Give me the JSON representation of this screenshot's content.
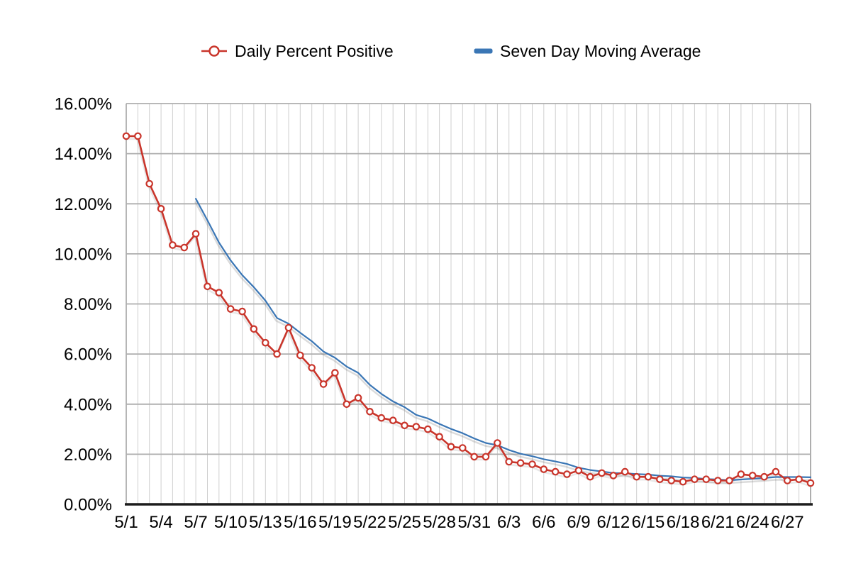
{
  "page": {
    "background": "#ffffff"
  },
  "legend": {
    "items": [
      {
        "label": "Daily Percent Positive",
        "marker": "open-circle",
        "color": "#c9352b"
      },
      {
        "label": "Seven Day Moving Average",
        "marker": "dash",
        "color": "#3a76b5"
      }
    ]
  },
  "colors": {
    "daily_line": "#c9352b",
    "moving_average_line": "#3a76b5",
    "vertical_grid": "#cfcfcf",
    "horizontal_grid": "#aeaeae",
    "axis_line": "#1c1c1c",
    "shadow": "rgba(110,110,110,0.25)"
  },
  "chart_data": {
    "type": "line",
    "title": "",
    "xlabel": "",
    "ylabel": "",
    "ylim": [
      0,
      16
    ],
    "y_tick_step": 2,
    "y_ticks": [
      "0.00%",
      "2.00%",
      "4.00%",
      "6.00%",
      "8.00%",
      "10.00%",
      "12.00%",
      "14.00%",
      "16.00%"
    ],
    "x_tick_every": 3,
    "x_tick_labels": [
      "5/1",
      "5/4",
      "5/7",
      "5/10",
      "5/13",
      "5/16",
      "5/19",
      "5/22",
      "5/25",
      "5/28",
      "5/31",
      "6/3",
      "6/6",
      "6/9",
      "6/12",
      "6/15",
      "6/18",
      "6/21",
      "6/24",
      "6/27"
    ],
    "grid": "both",
    "legend_position": "top",
    "x": [
      "5/1",
      "5/2",
      "5/3",
      "5/4",
      "5/5",
      "5/6",
      "5/7",
      "5/8",
      "5/9",
      "5/10",
      "5/11",
      "5/12",
      "5/13",
      "5/14",
      "5/15",
      "5/16",
      "5/17",
      "5/18",
      "5/19",
      "5/20",
      "5/21",
      "5/22",
      "5/23",
      "5/24",
      "5/25",
      "5/26",
      "5/27",
      "5/28",
      "5/29",
      "5/30",
      "5/31",
      "6/1",
      "6/2",
      "6/3",
      "6/4",
      "6/5",
      "6/6",
      "6/7",
      "6/8",
      "6/9",
      "6/10",
      "6/11",
      "6/12",
      "6/13",
      "6/14",
      "6/15",
      "6/16",
      "6/17",
      "6/18",
      "6/19",
      "6/20",
      "6/21",
      "6/22",
      "6/23",
      "6/24",
      "6/25",
      "6/26",
      "6/27",
      "6/28",
      "6/29"
    ],
    "series": [
      {
        "name": "Daily Percent Positive",
        "color": "#c9352b",
        "marker": "open-circle",
        "values": [
          14.7,
          14.7,
          12.8,
          11.8,
          10.35,
          10.25,
          10.8,
          8.7,
          8.45,
          7.8,
          7.7,
          7.0,
          6.45,
          6.0,
          7.05,
          5.95,
          5.45,
          4.8,
          5.25,
          4.0,
          4.25,
          3.7,
          3.45,
          3.35,
          3.15,
          3.1,
          3.0,
          2.7,
          2.3,
          2.25,
          1.9,
          1.9,
          2.45,
          1.7,
          1.65,
          1.6,
          1.4,
          1.3,
          1.2,
          1.35,
          1.1,
          1.25,
          1.15,
          1.3,
          1.1,
          1.1,
          1.0,
          0.95,
          0.9,
          1.0,
          1.0,
          0.95,
          0.95,
          1.2,
          1.15,
          1.1,
          1.3,
          0.95,
          1.0,
          0.85
        ]
      },
      {
        "name": "Seven Day Moving Average",
        "color": "#3a76b5",
        "marker": "none",
        "values": [
          null,
          null,
          null,
          null,
          null,
          null,
          12.2,
          11.34,
          10.45,
          9.74,
          9.15,
          8.67,
          8.13,
          7.44,
          7.21,
          6.85,
          6.51,
          6.1,
          5.85,
          5.5,
          5.25,
          4.77,
          4.41,
          4.11,
          3.88,
          3.57,
          3.43,
          3.21,
          3.01,
          2.84,
          2.63,
          2.45,
          2.36,
          2.17,
          2.02,
          1.92,
          1.8,
          1.71,
          1.61,
          1.46,
          1.37,
          1.31,
          1.25,
          1.24,
          1.21,
          1.19,
          1.14,
          1.12,
          1.07,
          1.05,
          1.01,
          0.99,
          0.96,
          0.99,
          1.02,
          1.05,
          1.09,
          1.09,
          1.09,
          1.08
        ]
      }
    ]
  }
}
